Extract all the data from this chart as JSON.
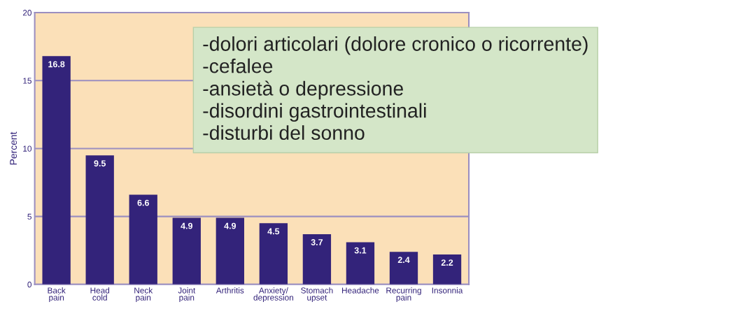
{
  "chart_data": {
    "type": "bar",
    "ylabel": "Percent",
    "categories": [
      "Back\npain",
      "Head\ncold",
      "Neck\npain",
      "Joint\npain",
      "Arthritis",
      "Anxiety/\ndepression",
      "Stomach\nupset",
      "Headache",
      "Recurring\npain",
      "Insonnia"
    ],
    "values": [
      16.8,
      9.5,
      6.6,
      4.9,
      4.9,
      4.5,
      3.7,
      3.1,
      2.4,
      2.2
    ],
    "color": "#33237a",
    "data_labels": true,
    "ylim": [
      0,
      20
    ],
    "yticks": [
      0,
      5,
      10,
      15,
      20
    ],
    "grid": "y",
    "annotations": [
      "-dolori articolari (dolore cronico o ricorrente)\n-cefalee\n-ansietà o depressione\n-disordini gastrointestinali\n-disturbi del sonno"
    ]
  }
}
